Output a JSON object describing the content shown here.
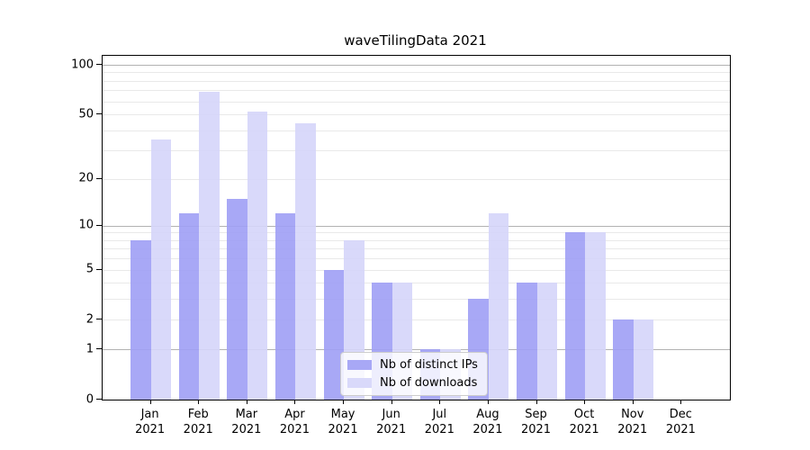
{
  "chart_data": {
    "type": "bar",
    "title": "waveTilingData 2021",
    "categories": [
      "Jan 2021",
      "Feb 2021",
      "Mar 2021",
      "Apr 2021",
      "May 2021",
      "Jun 2021",
      "Jul 2021",
      "Aug 2021",
      "Sep 2021",
      "Oct 2021",
      "Nov 2021",
      "Dec 2021"
    ],
    "series": [
      {
        "name": "Nb of distinct IPs",
        "color": "#9e9ef5",
        "values": [
          8,
          12,
          15,
          12,
          5,
          4,
          1,
          3,
          4,
          9,
          2,
          0
        ]
      },
      {
        "name": "Nb of downloads",
        "color": "#d5d5fa",
        "values": [
          35,
          69,
          52,
          44,
          8,
          4,
          1,
          12,
          4,
          9,
          2,
          0
        ]
      }
    ],
    "xlabel": "",
    "ylabel": "",
    "yscale": "log1p",
    "ylim": [
      0,
      112
    ],
    "yticks": [
      0,
      1,
      2,
      5,
      10,
      20,
      50,
      100
    ],
    "gridlines": {
      "major": [
        1,
        10,
        100
      ],
      "minor": [
        2,
        3,
        4,
        5,
        6,
        7,
        8,
        9,
        20,
        30,
        40,
        50,
        60,
        70,
        80,
        90
      ]
    },
    "grid": "on",
    "legend_position": "lower center",
    "colors": {
      "major_grid": "#b2b2b2",
      "minor_grid": "#e9e9e9",
      "spine": "#000000"
    }
  }
}
